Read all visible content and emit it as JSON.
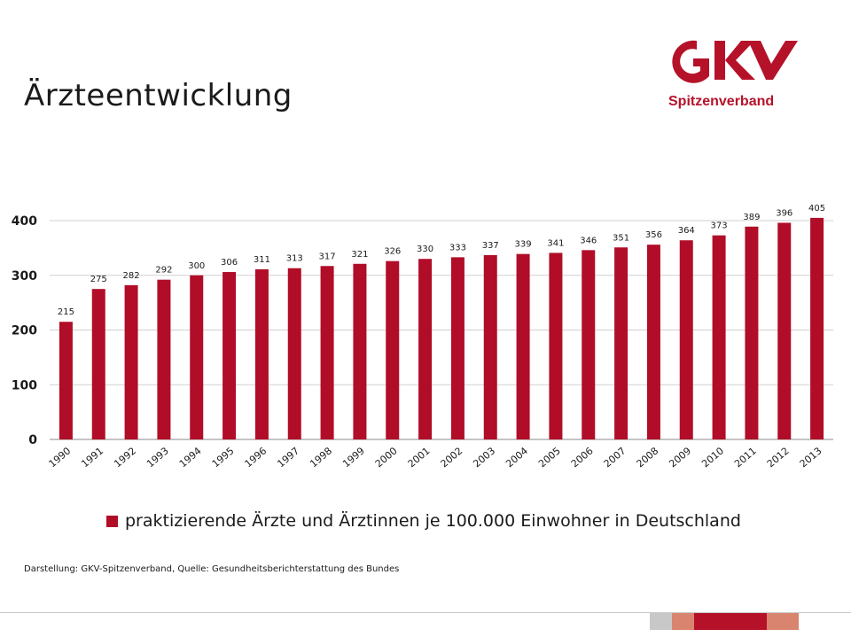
{
  "header": {
    "title": "Ärzteentwicklung",
    "logo_text": "Spitzenverband"
  },
  "colors": {
    "bar": "#b10d28",
    "logo": "#b5122a",
    "grid": "#d0d0d0",
    "footer": [
      "#c8c8c8",
      "#d9846f",
      "#b5122a",
      "#d9846f"
    ]
  },
  "chart_data": {
    "type": "bar",
    "categories": [
      "1990",
      "1991",
      "1992",
      "1993",
      "1994",
      "1995",
      "1996",
      "1997",
      "1998",
      "1999",
      "2000",
      "2001",
      "2002",
      "2003",
      "2004",
      "2005",
      "2006",
      "2007",
      "2008",
      "2009",
      "2010",
      "2011",
      "2012",
      "2013"
    ],
    "series": [
      {
        "name": "praktizierende Ärzte und Ärztinnen je 100.000 Einwohner in Deutschland",
        "values": [
          215,
          275,
          282,
          292,
          300,
          306,
          311,
          313,
          317,
          321,
          326,
          330,
          333,
          337,
          339,
          341,
          346,
          351,
          356,
          364,
          373,
          389,
          396,
          405
        ]
      }
    ],
    "ylim": [
      0,
      400
    ],
    "yticks": [
      0,
      100,
      200,
      300,
      400
    ],
    "grid": true,
    "legend_position": "bottom",
    "data_labels": true
  },
  "source_text": "Darstellung: GKV-Spitzenverband, Quelle: Gesundheitsberichterstattung des Bundes"
}
